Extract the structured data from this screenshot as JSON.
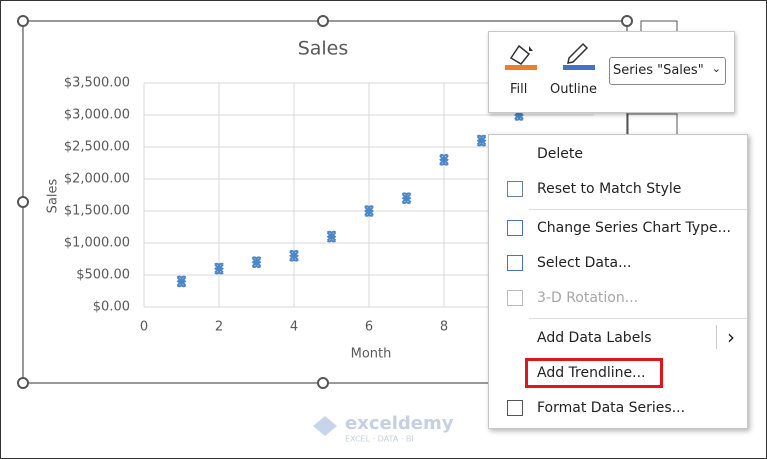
{
  "chart_data": {
    "type": "scatter",
    "title": "Sales",
    "x_label": "Month",
    "y_label": "Sales",
    "series": [
      {
        "color": "#4a86c8",
        "x": [
          1,
          2,
          3,
          4,
          5,
          6,
          7,
          8,
          9,
          10
        ],
        "values": [
          400,
          600,
          700,
          800,
          1100,
          1500,
          1700,
          2300,
          2600,
          3000
        ]
      }
    ],
    "xlim": [
      0,
      12
    ],
    "xticks": [
      0,
      2,
      4,
      6,
      8
    ],
    "ylim": [
      0,
      3500
    ],
    "yticks": [
      {
        "value": 0,
        "label": "$0.00"
      },
      {
        "value": 500,
        "label": "$500.00"
      },
      {
        "value": 1000,
        "label": "$1,000.00"
      },
      {
        "value": 1500,
        "label": "$1,500.00"
      },
      {
        "value": 2000,
        "label": "$2,000.00"
      },
      {
        "value": 2500,
        "label": "$2,500.00"
      },
      {
        "value": 3000,
        "label": "$3,000.00"
      },
      {
        "value": 3500,
        "label": "$3,500.00"
      }
    ],
    "grid": true
  },
  "mini_toolbar": {
    "fill": "Fill",
    "outline": "Outline",
    "series_selector": "Series \"Sales\""
  },
  "context_menu": {
    "items": [
      {
        "label": "Delete",
        "enabled": true
      },
      {
        "label": "Reset to Match Style",
        "enabled": true
      },
      {
        "label": "Change Series Chart Type...",
        "enabled": true
      },
      {
        "label": "Select Data...",
        "enabled": true
      },
      {
        "label": "3-D Rotation...",
        "enabled": false
      },
      {
        "label": "Add Data Labels",
        "enabled": true,
        "submenu": true
      },
      {
        "label": "Add Trendline...",
        "enabled": true,
        "highlighted": true
      },
      {
        "label": "Format Data Series...",
        "enabled": true
      }
    ]
  },
  "watermark": {
    "name": "exceldemy",
    "tagline": "EXCEL · DATA · BI"
  }
}
